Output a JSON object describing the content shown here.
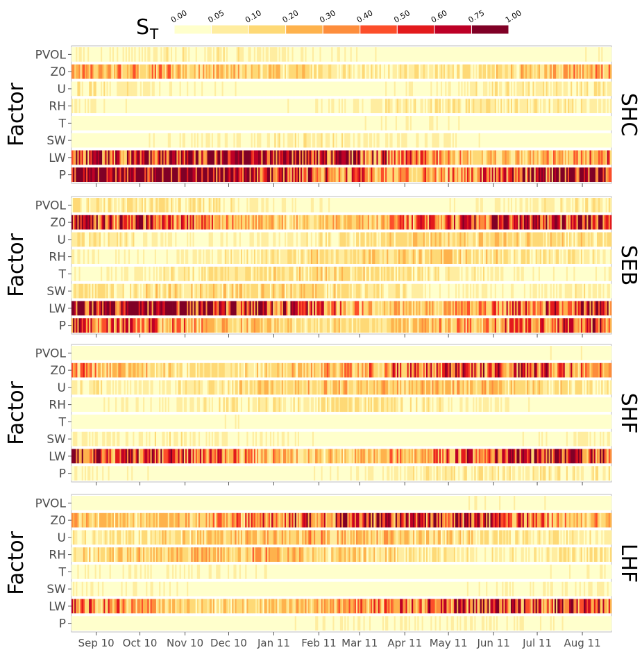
{
  "chart_data": {
    "type": "heatmap",
    "legend": {
      "title_main": "S",
      "title_sub": "T",
      "breaks": [
        "0.00",
        "0.05",
        "0.10",
        "0.20",
        "0.30",
        "0.40",
        "0.50",
        "0.60",
        "0.75",
        "1.00"
      ],
      "colors": [
        "#ffffcc",
        "#ffeda0",
        "#fed976",
        "#feb24c",
        "#fd8d3c",
        "#fc4e2a",
        "#e31a1c",
        "#bd0026",
        "#800026"
      ],
      "placement": "top"
    },
    "x_axis": {
      "type": "date",
      "range": [
        "2010-08-15",
        "2011-08-21"
      ],
      "tick_labels": [
        "Sep 10",
        "Oct 10",
        "Nov 10",
        "Dec 10",
        "Jan 11",
        "Feb 11",
        "Mar 11",
        "Apr 11",
        "May 11",
        "Jun 11",
        "Jul 11",
        "Aug 11"
      ]
    },
    "y_axis_label": "Factor",
    "factors": [
      "PVOL",
      "Z0",
      "U",
      "RH",
      "T",
      "SW",
      "LW",
      "P"
    ],
    "panels": [
      {
        "name": "SHC",
        "levels": {
          "PVOL": 0.04,
          "Z0": 0.18,
          "U": 0.05,
          "RH": 0.05,
          "T": 0.02,
          "SW": 0.04,
          "LW": 0.55,
          "P": 0.72
        }
      },
      {
        "name": "SEB",
        "levels": {
          "PVOL": 0.06,
          "Z0": 0.45,
          "U": 0.1,
          "RH": 0.1,
          "T": 0.08,
          "SW": 0.1,
          "LW": 0.55,
          "P": 0.3
        }
      },
      {
        "name": "SHF",
        "levels": {
          "PVOL": 0.02,
          "Z0": 0.3,
          "U": 0.15,
          "RH": 0.06,
          "T": 0.02,
          "SW": 0.04,
          "LW": 0.45,
          "P": 0.05
        }
      },
      {
        "name": "LHF",
        "levels": {
          "PVOL": 0.02,
          "Z0": 0.4,
          "U": 0.15,
          "RH": 0.15,
          "T": 0.03,
          "SW": 0.03,
          "LW": 0.35,
          "P": 0.03
        }
      }
    ]
  }
}
